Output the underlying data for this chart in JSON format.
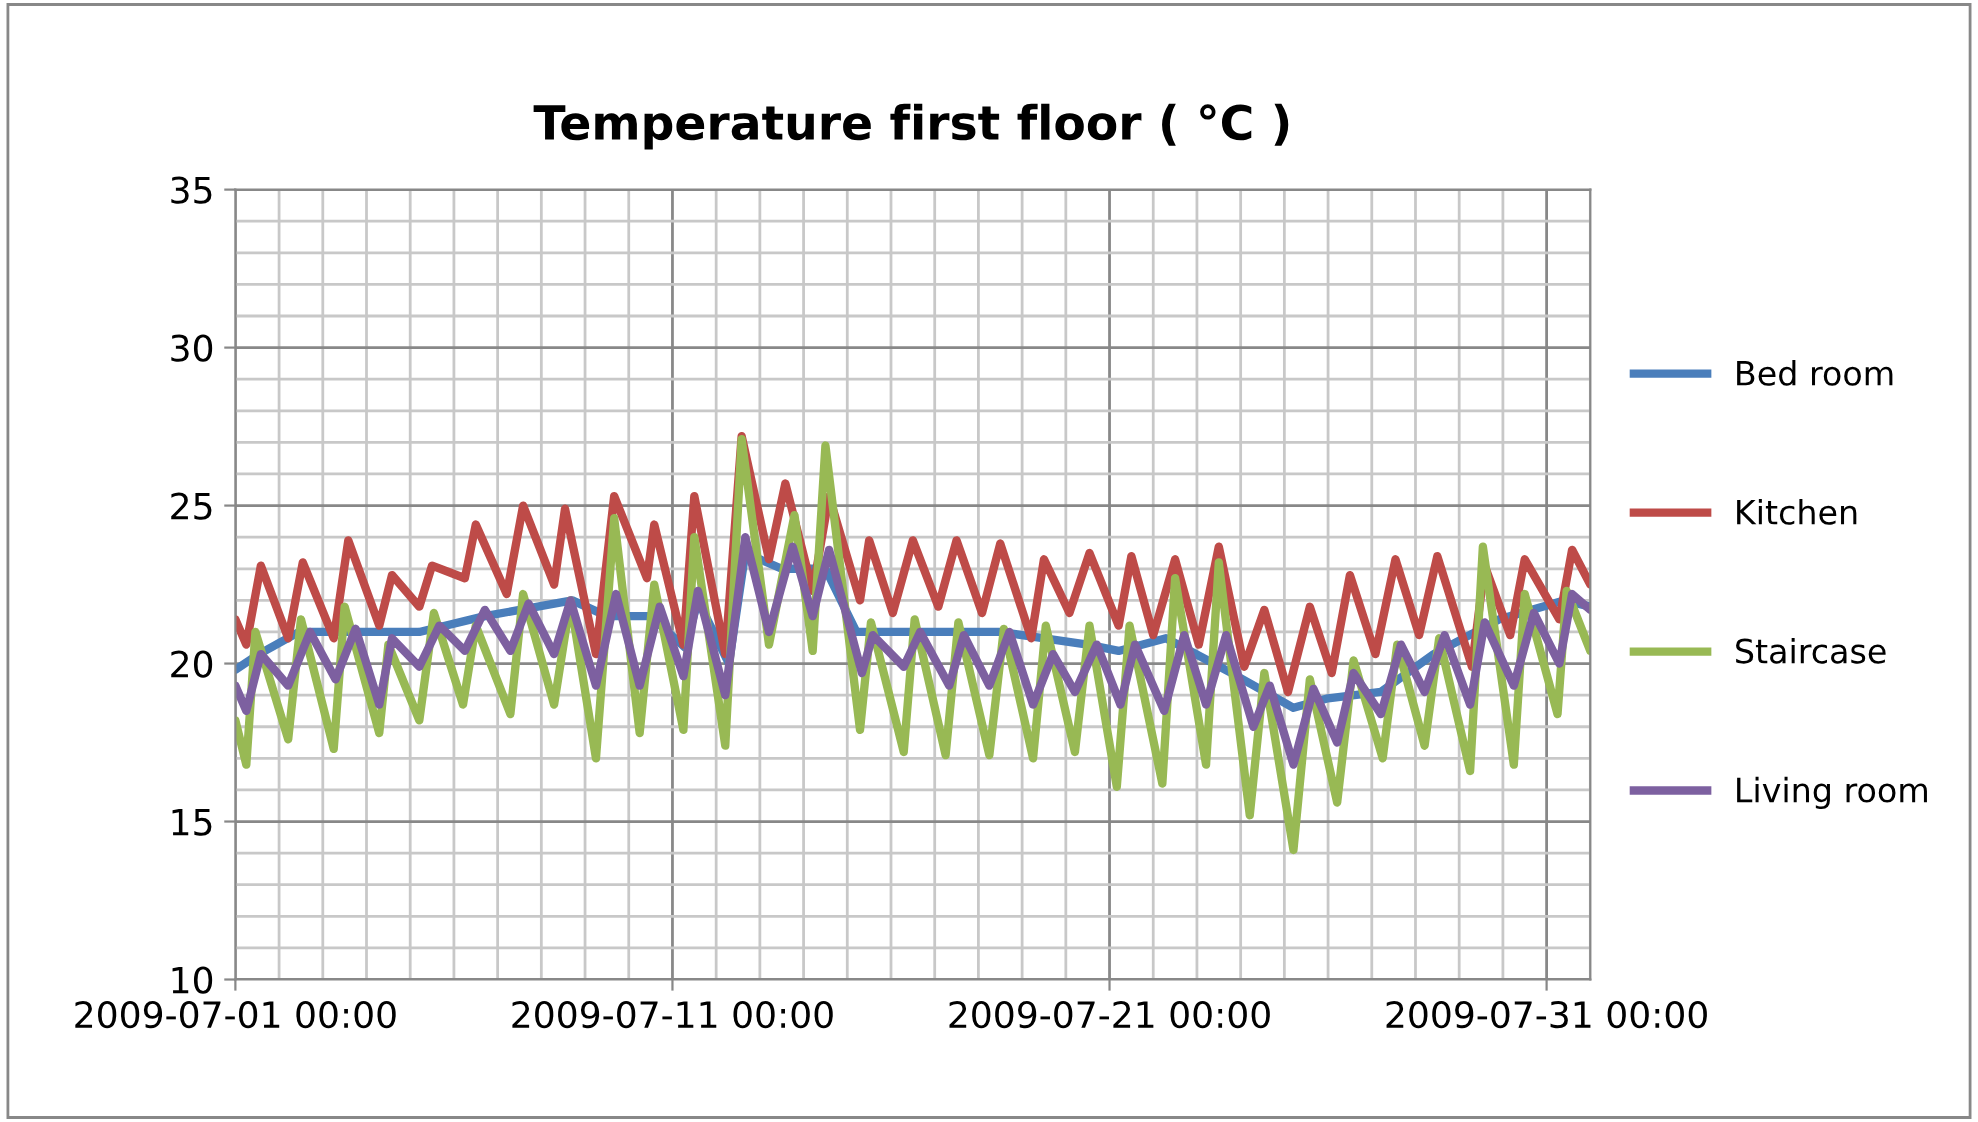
{
  "chart_data": {
    "type": "line",
    "title": "Temperature first floor ( °C )",
    "xlim": [
      "2009-07-01",
      "2009-08-01"
    ],
    "xticks": [
      {
        "value": "2009-07-01",
        "label": "2009-07-01 00:00"
      },
      {
        "value": "2009-07-11",
        "label": "2009-07-11 00:00"
      },
      {
        "value": "2009-07-21",
        "label": "2009-07-21 00:00"
      },
      {
        "value": "2009-07-31",
        "label": "2009-07-31 00:00"
      }
    ],
    "ylim": [
      10,
      35
    ],
    "yticks": [
      10,
      15,
      20,
      25,
      30,
      35
    ],
    "grid": true,
    "legend": "right",
    "marker": "none",
    "line_style": "solid",
    "series": [
      {
        "name": "Bed room",
        "color": "#4a7ebb",
        "x": [
          "2009-07-01T00:00",
          "2009-07-01T13:00",
          "2009-07-02T11:00",
          "2009-07-04T00:00",
          "2009-07-05T05:00",
          "2009-07-06T17:00",
          "2009-07-08T17:00",
          "2009-07-09T12:00",
          "2009-07-10T12:00",
          "2009-07-11T07:00",
          "2009-07-11T14:00",
          "2009-07-12T07:00",
          "2009-07-12T16:00",
          "2009-07-13T12:00",
          "2009-07-14T12:00",
          "2009-07-15T05:00",
          "2009-07-16T12:00",
          "2009-07-18T12:00",
          "2009-07-20T12:00",
          "2009-07-21T05:00",
          "2009-07-22T07:00",
          "2009-07-23T19:00",
          "2009-07-25T05:00",
          "2009-07-26T00:00",
          "2009-07-27T05:00",
          "2009-07-28T10:00",
          "2009-07-29T22:00",
          "2009-07-31T10:00",
          "2009-08-01T00:00"
        ],
        "values": [
          19.8,
          20.3,
          21.0,
          21.0,
          21.0,
          21.5,
          22.0,
          21.5,
          21.5,
          20.5,
          22.0,
          20.0,
          23.5,
          23.0,
          23.0,
          21.0,
          21.0,
          21.0,
          20.6,
          20.4,
          20.8,
          19.7,
          18.6,
          18.9,
          19.1,
          20.3,
          21.4,
          22.0,
          21.8
        ]
      },
      {
        "name": "Kitchen",
        "color": "#be4b48",
        "x": [
          "2009-07-01T00:00",
          "2009-07-01T06:00",
          "2009-07-01T14:00",
          "2009-07-02T05:00",
          "2009-07-02T13:00",
          "2009-07-03T06:00",
          "2009-07-03T14:00",
          "2009-07-04T07:00",
          "2009-07-04T14:00",
          "2009-07-05T05:00",
          "2009-07-05T12:00",
          "2009-07-06T06:00",
          "2009-07-06T12:00",
          "2009-07-07T05:00",
          "2009-07-07T14:00",
          "2009-07-08T07:00",
          "2009-07-08T13:00",
          "2009-07-09T06:00",
          "2009-07-09T16:00",
          "2009-07-10T10:00",
          "2009-07-10T14:00",
          "2009-07-11T06:00",
          "2009-07-11T12:00",
          "2009-07-12T05:00",
          "2009-07-12T14:00",
          "2009-07-13T05:00",
          "2009-07-13T14:00",
          "2009-07-14T05:00",
          "2009-07-14T14:00",
          "2009-07-15T07:00",
          "2009-07-15T12:00",
          "2009-07-16T01:00",
          "2009-07-16T12:00",
          "2009-07-17T02:00",
          "2009-07-17T12:00",
          "2009-07-18T02:00",
          "2009-07-18T12:00",
          "2009-07-19T05:00",
          "2009-07-19T12:00",
          "2009-07-20T02:00",
          "2009-07-20T13:00",
          "2009-07-21T05:00",
          "2009-07-21T12:00",
          "2009-07-22T00:00",
          "2009-07-22T12:00",
          "2009-07-23T01:00",
          "2009-07-23T12:00",
          "2009-07-24T02:00",
          "2009-07-24T13:00",
          "2009-07-25T02:00",
          "2009-07-25T14:00",
          "2009-07-26T02:00",
          "2009-07-26T12:00",
          "2009-07-27T02:00",
          "2009-07-27T13:00",
          "2009-07-28T02:00",
          "2009-07-28T12:00",
          "2009-07-29T07:00",
          "2009-07-29T14:00",
          "2009-07-30T04:00",
          "2009-07-30T12:00",
          "2009-07-31T07:00",
          "2009-07-31T14:00",
          "2009-08-01T00:00"
        ],
        "values": [
          21.4,
          20.6,
          23.1,
          20.8,
          23.2,
          20.8,
          23.9,
          21.2,
          22.8,
          21.8,
          23.1,
          22.7,
          24.4,
          22.2,
          25.0,
          22.5,
          24.9,
          20.3,
          25.3,
          22.7,
          24.4,
          20.6,
          25.3,
          20.3,
          27.2,
          23.3,
          25.7,
          22.3,
          25.3,
          22.0,
          23.9,
          21.6,
          23.9,
          21.8,
          23.9,
          21.6,
          23.8,
          20.8,
          23.3,
          21.6,
          23.5,
          21.2,
          23.4,
          20.9,
          23.3,
          20.6,
          23.7,
          19.9,
          21.7,
          19.1,
          21.8,
          19.7,
          22.8,
          20.3,
          23.3,
          20.9,
          23.4,
          19.9,
          23.1,
          20.9,
          23.3,
          21.4,
          23.6,
          22.5
        ]
      },
      {
        "name": "Staircase",
        "color": "#98b954",
        "x": [
          "2009-07-01T00:00",
          "2009-07-01T06:00",
          "2009-07-01T11:00",
          "2009-07-02T05:00",
          "2009-07-02T12:00",
          "2009-07-03T06:00",
          "2009-07-03T12:00",
          "2009-07-04T07:00",
          "2009-07-04T12:00",
          "2009-07-05T05:00",
          "2009-07-05T13:00",
          "2009-07-06T05:00",
          "2009-07-06T12:00",
          "2009-07-07T07:00",
          "2009-07-07T14:00",
          "2009-07-08T07:00",
          "2009-07-08T16:00",
          "2009-07-09T06:00",
          "2009-07-09T16:00",
          "2009-07-10T06:00",
          "2009-07-10T14:00",
          "2009-07-11T06:00",
          "2009-07-11T12:00",
          "2009-07-12T05:00",
          "2009-07-12T14:00",
          "2009-07-13T05:00",
          "2009-07-13T19:00",
          "2009-07-14T05:00",
          "2009-07-14T12:00",
          "2009-07-15T07:00",
          "2009-07-15T13:00",
          "2009-07-16T07:00",
          "2009-07-16T13:00",
          "2009-07-17T06:00",
          "2009-07-17T13:00",
          "2009-07-18T06:00",
          "2009-07-18T14:00",
          "2009-07-19T06:00",
          "2009-07-19T13:00",
          "2009-07-20T05:00",
          "2009-07-20T13:00",
          "2009-07-21T04:00",
          "2009-07-21T11:00",
          "2009-07-22T05:00",
          "2009-07-22T12:00",
          "2009-07-23T05:00",
          "2009-07-23T12:00",
          "2009-07-24T05:00",
          "2009-07-24T13:00",
          "2009-07-25T05:00",
          "2009-07-25T14:00",
          "2009-07-26T05:00",
          "2009-07-26T14:00",
          "2009-07-27T06:00",
          "2009-07-27T14:00",
          "2009-07-28T05:00",
          "2009-07-28T13:00",
          "2009-07-29T06:00",
          "2009-07-29T13:00",
          "2009-07-30T06:00",
          "2009-07-30T12:00",
          "2009-07-31T06:00",
          "2009-07-31T11:00",
          "2009-08-01T00:00"
        ],
        "values": [
          18.2,
          16.8,
          21.0,
          17.6,
          21.4,
          17.3,
          21.8,
          17.8,
          20.6,
          18.2,
          21.6,
          18.7,
          21.2,
          18.4,
          22.2,
          18.7,
          22.0,
          17.0,
          24.6,
          17.8,
          22.5,
          17.9,
          24.0,
          17.4,
          27.1,
          20.6,
          24.7,
          20.4,
          26.9,
          17.9,
          21.3,
          17.2,
          21.4,
          17.1,
          21.3,
          17.1,
          21.1,
          17.0,
          21.2,
          17.2,
          21.2,
          16.1,
          21.2,
          16.2,
          22.7,
          16.8,
          23.2,
          15.2,
          19.7,
          14.1,
          19.5,
          15.6,
          20.1,
          17.0,
          20.6,
          17.4,
          20.8,
          16.6,
          23.7,
          16.8,
          22.2,
          18.4,
          22.3,
          20.4
        ]
      },
      {
        "name": "Living room",
        "color": "#7d60a0",
        "x": [
          "2009-07-01T00:00",
          "2009-07-01T06:00",
          "2009-07-01T14:00",
          "2009-07-02T05:00",
          "2009-07-02T17:00",
          "2009-07-03T07:00",
          "2009-07-03T18:00",
          "2009-07-04T07:00",
          "2009-07-04T14:00",
          "2009-07-05T05:00",
          "2009-07-05T16:00",
          "2009-07-06T06:00",
          "2009-07-06T17:00",
          "2009-07-07T07:00",
          "2009-07-07T17:00",
          "2009-07-08T07:00",
          "2009-07-08T16:00",
          "2009-07-09T06:00",
          "2009-07-09T17:00",
          "2009-07-10T06:00",
          "2009-07-10T17:00",
          "2009-07-11T06:00",
          "2009-07-11T14:00",
          "2009-07-12T05:00",
          "2009-07-12T16:00",
          "2009-07-13T05:00",
          "2009-07-13T18:00",
          "2009-07-14T05:00",
          "2009-07-14T14:00",
          "2009-07-15T08:00",
          "2009-07-15T14:00",
          "2009-07-16T07:00",
          "2009-07-16T16:00",
          "2009-07-17T08:00",
          "2009-07-17T16:00",
          "2009-07-18T06:00",
          "2009-07-18T17:00",
          "2009-07-19T06:00",
          "2009-07-19T17:00",
          "2009-07-20T05:00",
          "2009-07-20T17:00",
          "2009-07-21T06:00",
          "2009-07-21T14:00",
          "2009-07-22T06:00",
          "2009-07-22T17:00",
          "2009-07-23T05:00",
          "2009-07-23T16:00",
          "2009-07-24T07:00",
          "2009-07-24T16:00",
          "2009-07-25T05:00",
          "2009-07-25T16:00",
          "2009-07-26T05:00",
          "2009-07-26T14:00",
          "2009-07-27T05:00",
          "2009-07-27T16:00",
          "2009-07-28T05:00",
          "2009-07-28T16:00",
          "2009-07-29T06:00",
          "2009-07-29T14:00",
          "2009-07-30T06:00",
          "2009-07-30T17:00",
          "2009-07-31T07:00",
          "2009-07-31T14:00",
          "2009-08-01T00:00"
        ],
        "values": [
          19.3,
          18.5,
          20.3,
          19.3,
          21.0,
          19.5,
          21.1,
          18.7,
          20.8,
          19.9,
          21.2,
          20.4,
          21.7,
          20.4,
          21.9,
          20.3,
          22.0,
          19.3,
          22.2,
          19.3,
          21.8,
          19.6,
          22.3,
          19.0,
          24.0,
          21.0,
          23.7,
          21.5,
          23.6,
          19.7,
          20.9,
          19.9,
          21.0,
          19.3,
          20.9,
          19.3,
          21.0,
          18.7,
          20.3,
          19.1,
          20.6,
          18.7,
          20.6,
          18.5,
          20.9,
          18.7,
          20.9,
          18.0,
          19.3,
          16.8,
          19.2,
          17.5,
          19.7,
          18.4,
          20.6,
          19.1,
          20.9,
          18.7,
          21.3,
          19.3,
          21.6,
          20.0,
          22.2,
          21.7
        ]
      }
    ]
  }
}
